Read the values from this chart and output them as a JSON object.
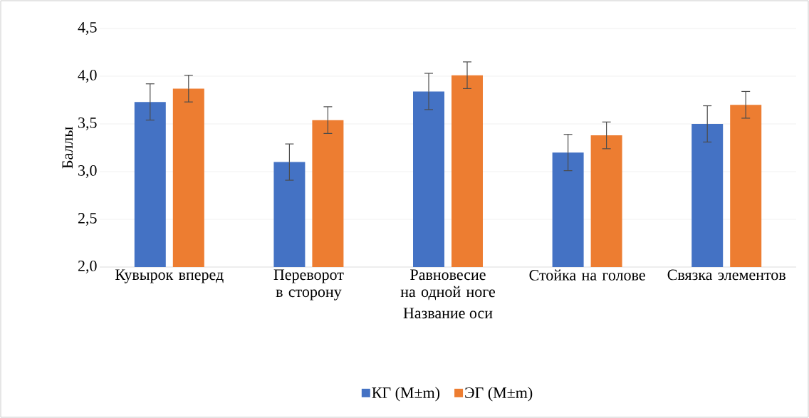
{
  "chart_data": {
    "type": "bar",
    "xlabel": "Название оси",
    "ylabel": "Баллы",
    "categories": [
      "Кувырок вперед",
      "Переворот в сторону",
      "Равновесие на одной ноге",
      "Стойка на голове",
      "Связка элементов"
    ],
    "series": [
      {
        "name": "КГ (M±m)",
        "color": "#4472c4",
        "values": [
          3.73,
          3.1,
          3.84,
          3.2,
          3.5
        ],
        "errors": [
          0.19,
          0.19,
          0.19,
          0.19,
          0.19
        ]
      },
      {
        "name": "ЭГ (M±m)",
        "color": "#ed7d31",
        "values": [
          3.87,
          3.54,
          4.01,
          3.38,
          3.7
        ],
        "errors": [
          0.14,
          0.14,
          0.14,
          0.14,
          0.14
        ]
      }
    ],
    "ylim": [
      2.0,
      4.5
    ],
    "yticks": [
      {
        "value": 2.0,
        "label": "2,0"
      },
      {
        "value": 2.5,
        "label": "2,5"
      },
      {
        "value": 3.0,
        "label": "3,0"
      },
      {
        "value": 3.5,
        "label": "3,5"
      },
      {
        "value": 4.0,
        "label": "4,0"
      },
      {
        "value": 4.5,
        "label": "4,5"
      }
    ],
    "grid": "y",
    "legend": "bottom"
  }
}
